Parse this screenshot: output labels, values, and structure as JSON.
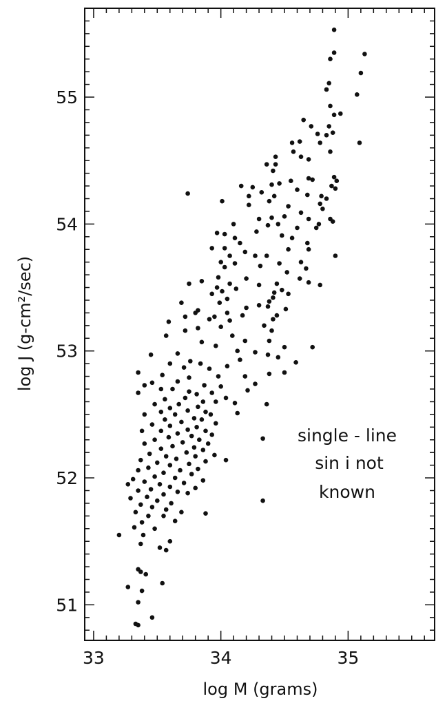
{
  "chart_data": {
    "type": "scatter",
    "title": "",
    "xlabel": "log M (grams)",
    "ylabel": "log J (g-cm²/sec)",
    "xlim": [
      32.93,
      35.68
    ],
    "ylim": [
      50.72,
      55.7
    ],
    "xticks": [
      33,
      34,
      35
    ],
    "yticks": [
      51,
      52,
      53,
      54,
      55
    ],
    "grid": false,
    "annotations": [
      "single - line",
      "sin i not",
      "known"
    ],
    "point_color": "#111111",
    "series": [
      {
        "points": [
          [
            34.89,
            55.53
          ],
          [
            34.89,
            55.35
          ],
          [
            35.13,
            55.34
          ],
          [
            34.86,
            55.3
          ],
          [
            35.1,
            55.19
          ],
          [
            34.85,
            55.11
          ],
          [
            34.83,
            55.06
          ],
          [
            35.07,
            55.02
          ],
          [
            34.94,
            54.87
          ],
          [
            34.86,
            54.93
          ],
          [
            34.89,
            54.86
          ],
          [
            34.65,
            54.82
          ],
          [
            34.85,
            54.77
          ],
          [
            34.71,
            54.77
          ],
          [
            34.88,
            54.72
          ],
          [
            34.76,
            54.71
          ],
          [
            34.83,
            54.7
          ],
          [
            34.78,
            54.64
          ],
          [
            35.09,
            54.64
          ],
          [
            34.62,
            54.65
          ],
          [
            34.56,
            54.64
          ],
          [
            34.57,
            54.57
          ],
          [
            34.86,
            54.57
          ],
          [
            34.63,
            54.53
          ],
          [
            34.43,
            54.53
          ],
          [
            34.43,
            54.47
          ],
          [
            34.69,
            54.51
          ],
          [
            34.36,
            54.47
          ],
          [
            34.41,
            54.42
          ],
          [
            34.69,
            54.36
          ],
          [
            34.89,
            54.37
          ],
          [
            34.72,
            54.35
          ],
          [
            34.91,
            54.34
          ],
          [
            34.55,
            54.34
          ],
          [
            34.46,
            54.32
          ],
          [
            34.4,
            54.31
          ],
          [
            34.87,
            54.3
          ],
          [
            34.9,
            54.28
          ],
          [
            34.16,
            54.3
          ],
          [
            34.6,
            54.27
          ],
          [
            34.25,
            54.29
          ],
          [
            34.32,
            54.25
          ],
          [
            34.42,
            54.22
          ],
          [
            34.68,
            54.23
          ],
          [
            34.79,
            54.22
          ],
          [
            34.22,
            54.22
          ],
          [
            33.74,
            54.24
          ],
          [
            34.83,
            54.2
          ],
          [
            34.01,
            54.18
          ],
          [
            34.78,
            54.16
          ],
          [
            34.38,
            54.18
          ],
          [
            34.22,
            54.15
          ],
          [
            34.53,
            54.14
          ],
          [
            34.8,
            54.12
          ],
          [
            34.5,
            54.06
          ],
          [
            34.63,
            54.09
          ],
          [
            34.4,
            54.05
          ],
          [
            34.69,
            54.04
          ],
          [
            34.3,
            54.04
          ],
          [
            34.86,
            54.04
          ],
          [
            34.88,
            54.02
          ],
          [
            34.77,
            54.0
          ],
          [
            34.45,
            54.0
          ],
          [
            34.37,
            53.99
          ],
          [
            34.6,
            53.97
          ],
          [
            34.1,
            54.0
          ],
          [
            34.75,
            53.97
          ],
          [
            34.28,
            53.94
          ],
          [
            33.97,
            53.93
          ],
          [
            34.48,
            53.91
          ],
          [
            34.03,
            53.92
          ],
          [
            34.56,
            53.89
          ],
          [
            34.11,
            53.89
          ],
          [
            34.68,
            53.85
          ],
          [
            34.15,
            53.85
          ],
          [
            34.69,
            53.8
          ],
          [
            33.93,
            53.81
          ],
          [
            34.03,
            53.81
          ],
          [
            34.53,
            53.8
          ],
          [
            34.19,
            53.78
          ],
          [
            34.07,
            53.75
          ],
          [
            34.27,
            53.75
          ],
          [
            34.36,
            53.75
          ],
          [
            34.9,
            53.75
          ],
          [
            34.63,
            53.7
          ],
          [
            34.0,
            53.7
          ],
          [
            34.46,
            53.69
          ],
          [
            34.11,
            53.69
          ],
          [
            34.03,
            53.66
          ],
          [
            34.31,
            53.67
          ],
          [
            34.67,
            53.65
          ],
          [
            34.52,
            53.62
          ],
          [
            33.98,
            53.58
          ],
          [
            34.62,
            53.57
          ],
          [
            34.2,
            53.57
          ],
          [
            34.07,
            53.53
          ],
          [
            34.3,
            53.52
          ],
          [
            34.78,
            53.52
          ],
          [
            34.69,
            53.54
          ],
          [
            34.44,
            53.53
          ],
          [
            33.85,
            53.55
          ],
          [
            33.75,
            53.53
          ],
          [
            33.97,
            53.5
          ],
          [
            34.12,
            53.49
          ],
          [
            34.48,
            53.48
          ],
          [
            34.42,
            53.46
          ],
          [
            34.01,
            53.47
          ],
          [
            34.53,
            53.45
          ],
          [
            33.93,
            53.45
          ],
          [
            34.41,
            53.42
          ],
          [
            34.05,
            53.41
          ],
          [
            34.38,
            53.39
          ],
          [
            33.99,
            53.38
          ],
          [
            33.69,
            53.38
          ],
          [
            34.3,
            53.36
          ],
          [
            34.2,
            53.34
          ],
          [
            33.82,
            53.32
          ],
          [
            34.37,
            53.35
          ],
          [
            34.51,
            53.33
          ],
          [
            34.05,
            53.3
          ],
          [
            33.8,
            53.3
          ],
          [
            34.44,
            53.28
          ],
          [
            33.95,
            53.27
          ],
          [
            33.72,
            53.27
          ],
          [
            34.17,
            53.28
          ],
          [
            34.41,
            53.25
          ],
          [
            34.07,
            53.24
          ],
          [
            33.91,
            53.25
          ],
          [
            33.59,
            53.23
          ],
          [
            34.34,
            53.2
          ],
          [
            34.0,
            53.19
          ],
          [
            33.82,
            53.18
          ],
          [
            33.72,
            53.16
          ],
          [
            34.4,
            53.16
          ],
          [
            34.09,
            53.12
          ],
          [
            33.57,
            53.12
          ],
          [
            34.19,
            53.08
          ],
          [
            34.38,
            53.08
          ],
          [
            33.85,
            53.07
          ],
          [
            33.96,
            53.04
          ],
          [
            34.5,
            53.03
          ],
          [
            34.72,
            53.03
          ],
          [
            34.13,
            53.0
          ],
          [
            34.27,
            52.99
          ],
          [
            33.66,
            52.98
          ],
          [
            34.37,
            52.97
          ],
          [
            33.45,
            52.97
          ],
          [
            34.45,
            52.95
          ],
          [
            34.15,
            52.93
          ],
          [
            33.76,
            52.92
          ],
          [
            33.84,
            52.9
          ],
          [
            33.6,
            52.9
          ],
          [
            34.59,
            52.91
          ],
          [
            34.05,
            52.88
          ],
          [
            33.71,
            52.87
          ],
          [
            33.91,
            52.86
          ],
          [
            34.5,
            52.83
          ],
          [
            33.35,
            52.83
          ],
          [
            34.38,
            52.82
          ],
          [
            33.54,
            52.81
          ],
          [
            33.98,
            52.8
          ],
          [
            33.75,
            52.79
          ],
          [
            34.19,
            52.8
          ],
          [
            33.66,
            52.76
          ],
          [
            33.46,
            52.75
          ],
          [
            34.27,
            52.74
          ],
          [
            33.87,
            52.73
          ],
          [
            34.0,
            52.72
          ],
          [
            33.4,
            52.73
          ],
          [
            33.53,
            52.7
          ],
          [
            33.62,
            52.7
          ],
          [
            33.75,
            52.68
          ],
          [
            34.21,
            52.69
          ],
          [
            33.93,
            52.67
          ],
          [
            33.81,
            52.66
          ],
          [
            33.35,
            52.67
          ],
          [
            34.04,
            52.63
          ],
          [
            33.72,
            52.63
          ],
          [
            33.56,
            52.62
          ],
          [
            33.86,
            52.6
          ],
          [
            33.96,
            52.6
          ],
          [
            33.67,
            52.58
          ],
          [
            34.11,
            52.59
          ],
          [
            33.48,
            52.58
          ],
          [
            33.82,
            52.56
          ],
          [
            33.6,
            52.55
          ],
          [
            34.36,
            52.58
          ],
          [
            33.74,
            52.53
          ],
          [
            33.88,
            52.52
          ],
          [
            33.53,
            52.52
          ],
          [
            33.92,
            52.5
          ],
          [
            33.4,
            52.5
          ],
          [
            33.64,
            52.5
          ],
          [
            34.13,
            52.51
          ],
          [
            33.79,
            52.47
          ],
          [
            33.56,
            52.46
          ],
          [
            33.85,
            52.46
          ],
          [
            33.69,
            52.44
          ],
          [
            33.96,
            52.43
          ],
          [
            33.46,
            52.42
          ],
          [
            33.6,
            52.41
          ],
          [
            33.81,
            52.4
          ],
          [
            33.74,
            52.38
          ],
          [
            33.88,
            52.37
          ],
          [
            33.53,
            52.37
          ],
          [
            33.38,
            52.37
          ],
          [
            33.66,
            52.35
          ],
          [
            33.93,
            52.34
          ],
          [
            33.77,
            52.33
          ],
          [
            33.59,
            52.32
          ],
          [
            33.83,
            52.3
          ],
          [
            33.48,
            52.3
          ],
          [
            34.33,
            52.31
          ],
          [
            33.7,
            52.28
          ],
          [
            33.4,
            52.27
          ],
          [
            33.9,
            52.27
          ],
          [
            33.62,
            52.25
          ],
          [
            33.79,
            52.24
          ],
          [
            33.53,
            52.23
          ],
          [
            33.86,
            52.22
          ],
          [
            33.73,
            52.2
          ],
          [
            33.44,
            52.19
          ],
          [
            33.95,
            52.18
          ],
          [
            33.57,
            52.17
          ],
          [
            33.8,
            52.17
          ],
          [
            33.65,
            52.15
          ],
          [
            34.04,
            52.14
          ],
          [
            33.37,
            52.14
          ],
          [
            33.88,
            52.13
          ],
          [
            33.5,
            52.12
          ],
          [
            33.75,
            52.11
          ],
          [
            33.6,
            52.1
          ],
          [
            33.43,
            52.08
          ],
          [
            33.82,
            52.07
          ],
          [
            33.68,
            52.06
          ],
          [
            33.35,
            52.06
          ],
          [
            33.55,
            52.04
          ],
          [
            33.77,
            52.03
          ],
          [
            33.48,
            52.01
          ],
          [
            33.64,
            52.0
          ],
          [
            33.31,
            51.99
          ],
          [
            33.86,
            51.98
          ],
          [
            33.4,
            51.97
          ],
          [
            33.71,
            51.96
          ],
          [
            33.52,
            51.95
          ],
          [
            33.27,
            51.95
          ],
          [
            33.6,
            51.93
          ],
          [
            33.8,
            51.92
          ],
          [
            33.45,
            51.91
          ],
          [
            33.35,
            51.9
          ],
          [
            33.66,
            51.89
          ],
          [
            33.55,
            51.87
          ],
          [
            33.74,
            51.88
          ],
          [
            33.42,
            51.85
          ],
          [
            33.29,
            51.84
          ],
          [
            34.33,
            51.82
          ],
          [
            33.5,
            51.82
          ],
          [
            33.61,
            51.8
          ],
          [
            33.37,
            51.79
          ],
          [
            33.46,
            51.77
          ],
          [
            33.57,
            51.75
          ],
          [
            33.33,
            51.73
          ],
          [
            33.69,
            51.73
          ],
          [
            33.88,
            51.72
          ],
          [
            33.43,
            51.7
          ],
          [
            33.55,
            51.7
          ],
          [
            33.64,
            51.66
          ],
          [
            33.38,
            51.65
          ],
          [
            33.32,
            51.61
          ],
          [
            33.48,
            51.6
          ],
          [
            33.2,
            51.55
          ],
          [
            33.39,
            51.55
          ],
          [
            33.6,
            51.5
          ],
          [
            33.37,
            51.48
          ],
          [
            33.52,
            51.45
          ],
          [
            33.57,
            51.43
          ],
          [
            33.35,
            51.28
          ],
          [
            33.37,
            51.26
          ],
          [
            33.41,
            51.24
          ],
          [
            33.54,
            51.17
          ],
          [
            33.27,
            51.14
          ],
          [
            33.38,
            51.11
          ],
          [
            33.35,
            51.02
          ],
          [
            33.46,
            50.9
          ],
          [
            33.33,
            50.85
          ],
          [
            33.35,
            50.84
          ]
        ]
      }
    ]
  }
}
